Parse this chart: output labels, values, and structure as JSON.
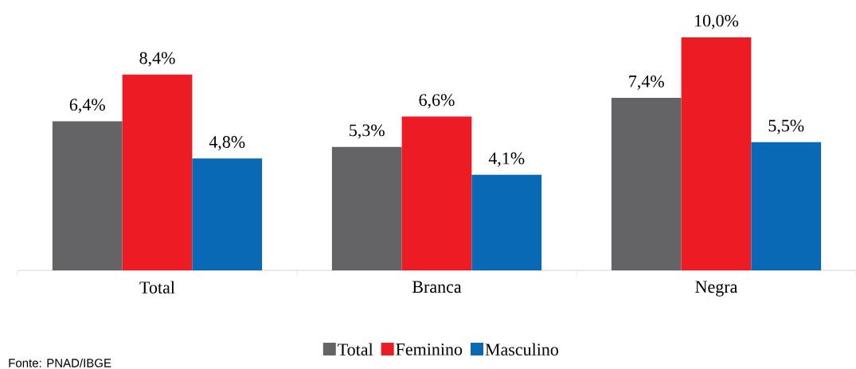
{
  "chart_data": {
    "type": "bar",
    "categories": [
      "Total",
      "Branca",
      "Negra"
    ],
    "series": [
      {
        "name": "Total",
        "color": "#646466",
        "values": [
          6.4,
          5.3,
          7.4
        ],
        "value_labels": [
          "6,4%",
          "5,3%",
          "7,4%"
        ]
      },
      {
        "name": "Feminino",
        "color": "#ed1c24",
        "values": [
          8.4,
          6.6,
          10.0
        ],
        "value_labels": [
          "8,4%",
          "6,6%",
          "10,0%"
        ]
      },
      {
        "name": "Masculino",
        "color": "#0a69b4",
        "values": [
          4.8,
          4.1,
          5.5
        ],
        "value_labels": [
          "4,8%",
          "4,1%",
          "5,5%"
        ]
      }
    ],
    "legend": "bottom",
    "annotations": [
      "Fonte: PNAD/IBGE"
    ]
  }
}
